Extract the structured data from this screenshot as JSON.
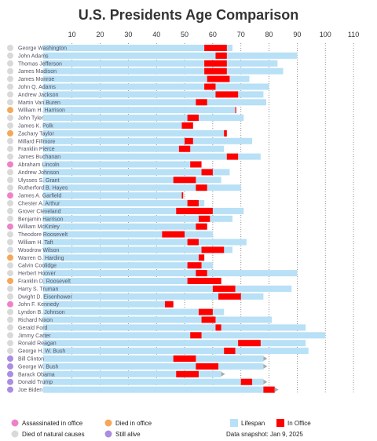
{
  "chart_data": {
    "type": "bar",
    "title": "U.S. Presidents Age Comparison",
    "xlim": [
      -10,
      115
    ],
    "x_ticks": [
      10,
      20,
      30,
      40,
      50,
      60,
      70,
      80,
      90,
      100,
      110
    ],
    "grid": "vertical dotted",
    "colors": {
      "lifespan": "#b8e0f6",
      "in_office": "#ff0000",
      "assassinated": "#ee82c8",
      "died_in_office": "#f5a85a",
      "natural": "#d9d9d9",
      "alive": "#a98ee2",
      "alive_marker": "#aaaaaa"
    },
    "presidents": [
      {
        "name": "George Washington",
        "status": "natural",
        "lifespan": 67,
        "office_start": 57,
        "office_end": 65
      },
      {
        "name": "John Adams",
        "status": "natural",
        "lifespan": 90,
        "office_start": 61,
        "office_end": 65
      },
      {
        "name": "Thomas Jefferson",
        "status": "natural",
        "lifespan": 83,
        "office_start": 57,
        "office_end": 65
      },
      {
        "name": "James Madison",
        "status": "natural",
        "lifespan": 85,
        "office_start": 57,
        "office_end": 65
      },
      {
        "name": "James Monroe",
        "status": "natural",
        "lifespan": 73,
        "office_start": 58,
        "office_end": 66
      },
      {
        "name": "John Q. Adams",
        "status": "natural",
        "lifespan": 80,
        "office_start": 57,
        "office_end": 61
      },
      {
        "name": "Andrew Jackson",
        "status": "natural",
        "lifespan": 78,
        "office_start": 61,
        "office_end": 69
      },
      {
        "name": "Martin Van Buren",
        "status": "natural",
        "lifespan": 79,
        "office_start": 54,
        "office_end": 58
      },
      {
        "name": "William H. Harrison",
        "status": "died_in_office",
        "lifespan": 68,
        "office_start": 68,
        "office_end": 68
      },
      {
        "name": "John Tyler",
        "status": "natural",
        "lifespan": 71,
        "office_start": 51,
        "office_end": 55
      },
      {
        "name": "James K. Polk",
        "status": "natural",
        "lifespan": 53,
        "office_start": 49,
        "office_end": 53
      },
      {
        "name": "Zachary Taylor",
        "status": "died_in_office",
        "lifespan": 65,
        "office_start": 64,
        "office_end": 65
      },
      {
        "name": "Millard Fillmore",
        "status": "natural",
        "lifespan": 74,
        "office_start": 50,
        "office_end": 53
      },
      {
        "name": "Franklin Pierce",
        "status": "natural",
        "lifespan": 64,
        "office_start": 48,
        "office_end": 52
      },
      {
        "name": "James Buchanan",
        "status": "natural",
        "lifespan": 77,
        "office_start": 65,
        "office_end": 69
      },
      {
        "name": "Abraham Lincoln",
        "status": "assassinated",
        "lifespan": 56,
        "office_start": 52,
        "office_end": 56
      },
      {
        "name": "Andrew Johnson",
        "status": "natural",
        "lifespan": 66,
        "office_start": 56,
        "office_end": 60
      },
      {
        "name": "Ulysses S. Grant",
        "status": "natural",
        "lifespan": 63,
        "office_start": 46,
        "office_end": 54
      },
      {
        "name": "Rutherford B. Hayes",
        "status": "natural",
        "lifespan": 70,
        "office_start": 54,
        "office_end": 58
      },
      {
        "name": "James A. Garfield",
        "status": "assassinated",
        "lifespan": 49,
        "office_start": 49,
        "office_end": 49.5
      },
      {
        "name": "Chester A. Arthur",
        "status": "natural",
        "lifespan": 57,
        "office_start": 51,
        "office_end": 55
      },
      {
        "name": "Grover Cleveland",
        "status": "natural",
        "lifespan": 71,
        "office_start": 47,
        "office_end": 60
      },
      {
        "name": "Benjamin Harrison",
        "status": "natural",
        "lifespan": 67,
        "office_start": 55,
        "office_end": 59
      },
      {
        "name": "William McKinley",
        "status": "assassinated",
        "lifespan": 58,
        "office_start": 54,
        "office_end": 58
      },
      {
        "name": "Theodore Roosevelt",
        "status": "natural",
        "lifespan": 60,
        "office_start": 42,
        "office_end": 50
      },
      {
        "name": "William H. Taft",
        "status": "natural",
        "lifespan": 72,
        "office_start": 51,
        "office_end": 55
      },
      {
        "name": "Woodrow Wilson",
        "status": "natural",
        "lifespan": 67,
        "office_start": 56,
        "office_end": 64
      },
      {
        "name": "Warren G. Harding",
        "status": "died_in_office",
        "lifespan": 57,
        "office_start": 55,
        "office_end": 57
      },
      {
        "name": "Calvin Coolidge",
        "status": "natural",
        "lifespan": 60,
        "office_start": 51,
        "office_end": 56
      },
      {
        "name": "Herbert Hoover",
        "status": "natural",
        "lifespan": 90,
        "office_start": 54,
        "office_end": 58
      },
      {
        "name": "Franklin D. Roosevelt",
        "status": "died_in_office",
        "lifespan": 63,
        "office_start": 51,
        "office_end": 63
      },
      {
        "name": "Harry S. Truman",
        "status": "natural",
        "lifespan": 88,
        "office_start": 60,
        "office_end": 68
      },
      {
        "name": "Dwight D. Eisenhower",
        "status": "natural",
        "lifespan": 78,
        "office_start": 62,
        "office_end": 70
      },
      {
        "name": "John F. Kennedy",
        "status": "assassinated",
        "lifespan": 46,
        "office_start": 43,
        "office_end": 46
      },
      {
        "name": "Lyndon B. Johnson",
        "status": "natural",
        "lifespan": 64,
        "office_start": 55,
        "office_end": 60
      },
      {
        "name": "Richard Nixon",
        "status": "natural",
        "lifespan": 81,
        "office_start": 56,
        "office_end": 61
      },
      {
        "name": "Gerald Ford",
        "status": "natural",
        "lifespan": 93,
        "office_start": 61,
        "office_end": 63
      },
      {
        "name": "Jimmy Carter",
        "status": "natural",
        "lifespan": 100,
        "office_start": 52,
        "office_end": 56
      },
      {
        "name": "Ronald Reagan",
        "status": "natural",
        "lifespan": 93,
        "office_start": 69,
        "office_end": 77
      },
      {
        "name": "George H. W. Bush",
        "status": "natural",
        "lifespan": 94,
        "office_start": 64,
        "office_end": 68
      },
      {
        "name": "Bill Clinton",
        "status": "alive",
        "lifespan": 78,
        "office_start": 46,
        "office_end": 54
      },
      {
        "name": "George W. Bush",
        "status": "alive",
        "lifespan": 78,
        "office_start": 54,
        "office_end": 62
      },
      {
        "name": "Barack Obama",
        "status": "alive",
        "lifespan": 63,
        "office_start": 47,
        "office_end": 55
      },
      {
        "name": "Donald Trump",
        "status": "alive",
        "lifespan": 78,
        "office_start": 70,
        "office_end": 74
      },
      {
        "name": "Joe Biden",
        "status": "alive",
        "lifespan": 82,
        "office_start": 78,
        "office_end": 82
      }
    ]
  },
  "legend": {
    "assassinated": "Assassinated in office",
    "natural": "Died of natural causes",
    "died_in_office": "Died in office",
    "alive": "Still alive",
    "lifespan": "Lifespan",
    "in_office": "In Office",
    "snapshot": "Data snapshot: Jan 9, 2025"
  }
}
